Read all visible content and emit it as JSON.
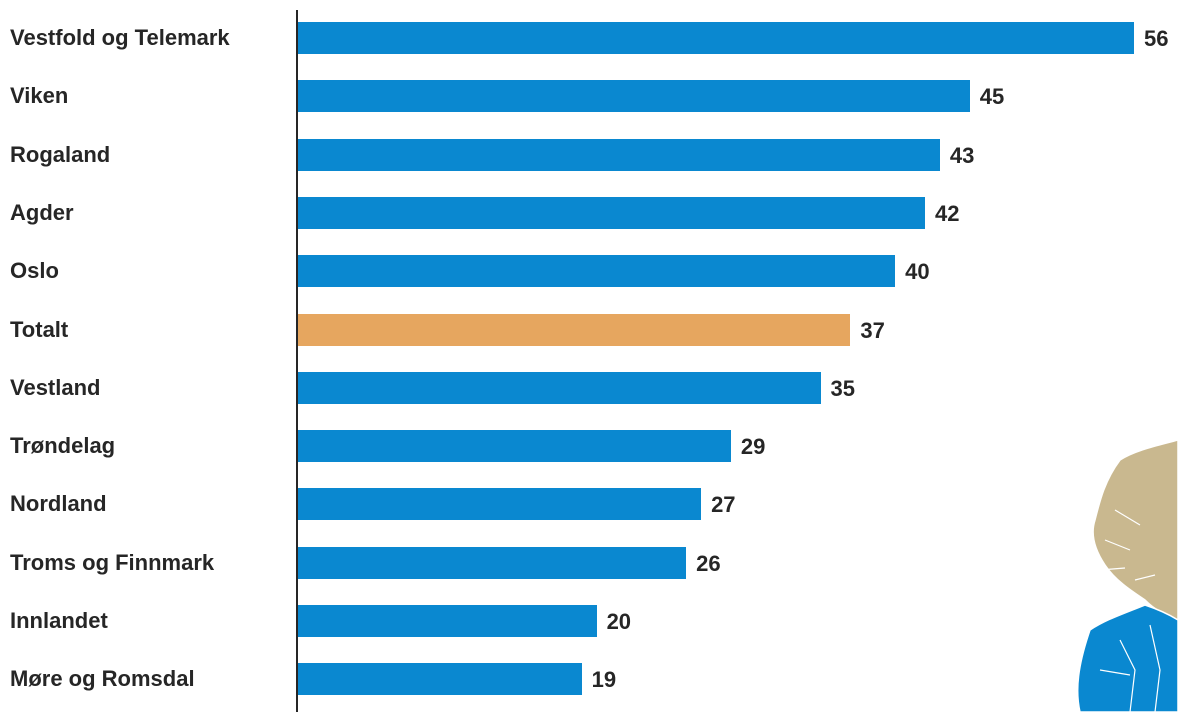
{
  "chart_data": {
    "type": "bar",
    "orientation": "horizontal",
    "categories": [
      "Vestfold og Telemark",
      "Viken",
      "Rogaland",
      "Agder",
      "Oslo",
      "Totalt",
      "Vestland",
      "Trøndelag",
      "Nordland",
      "Troms og Finnmark",
      "Innlandet",
      "Møre og Romsdal"
    ],
    "values": [
      56,
      45,
      43,
      42,
      40,
      37,
      35,
      29,
      27,
      26,
      20,
      19
    ],
    "highlight_category": "Totalt",
    "colors": {
      "bar": "#0a88d0",
      "highlight": "#e6a65f",
      "map_land": "#c9b88f",
      "map_water": "#0a88d0"
    },
    "xlim": [
      0,
      56
    ],
    "grid": false,
    "legend": "none",
    "data_labels": true
  },
  "decoration": {
    "icon": "norway-map-icon"
  }
}
